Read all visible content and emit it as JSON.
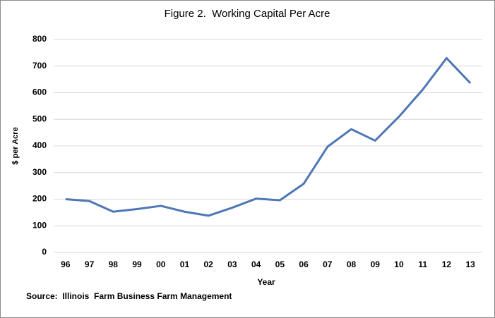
{
  "chart_data": {
    "type": "line",
    "title": "Figure 2.  Working Capital Per Acre",
    "x_label": "Year",
    "y_label": "$ per Acre",
    "source": "Source:  Illinois  Farm Business Farm Management",
    "categories": [
      "96",
      "97",
      "98",
      "99",
      "00",
      "01",
      "02",
      "03",
      "04",
      "05",
      "06",
      "07",
      "08",
      "09",
      "10",
      "11",
      "12",
      "13"
    ],
    "series": [
      {
        "name": "Working Capital Per Acre",
        "color": "#4f76b5",
        "values": [
          200,
          193,
          153,
          163,
          175,
          153,
          138,
          168,
          202,
          196,
          258,
          397,
          463,
          420,
          510,
          612,
          730,
          636
        ]
      }
    ],
    "ylim": [
      0,
      800
    ],
    "yticks": [
      0,
      100,
      200,
      300,
      400,
      500,
      600,
      700,
      800
    ],
    "grid": true
  }
}
